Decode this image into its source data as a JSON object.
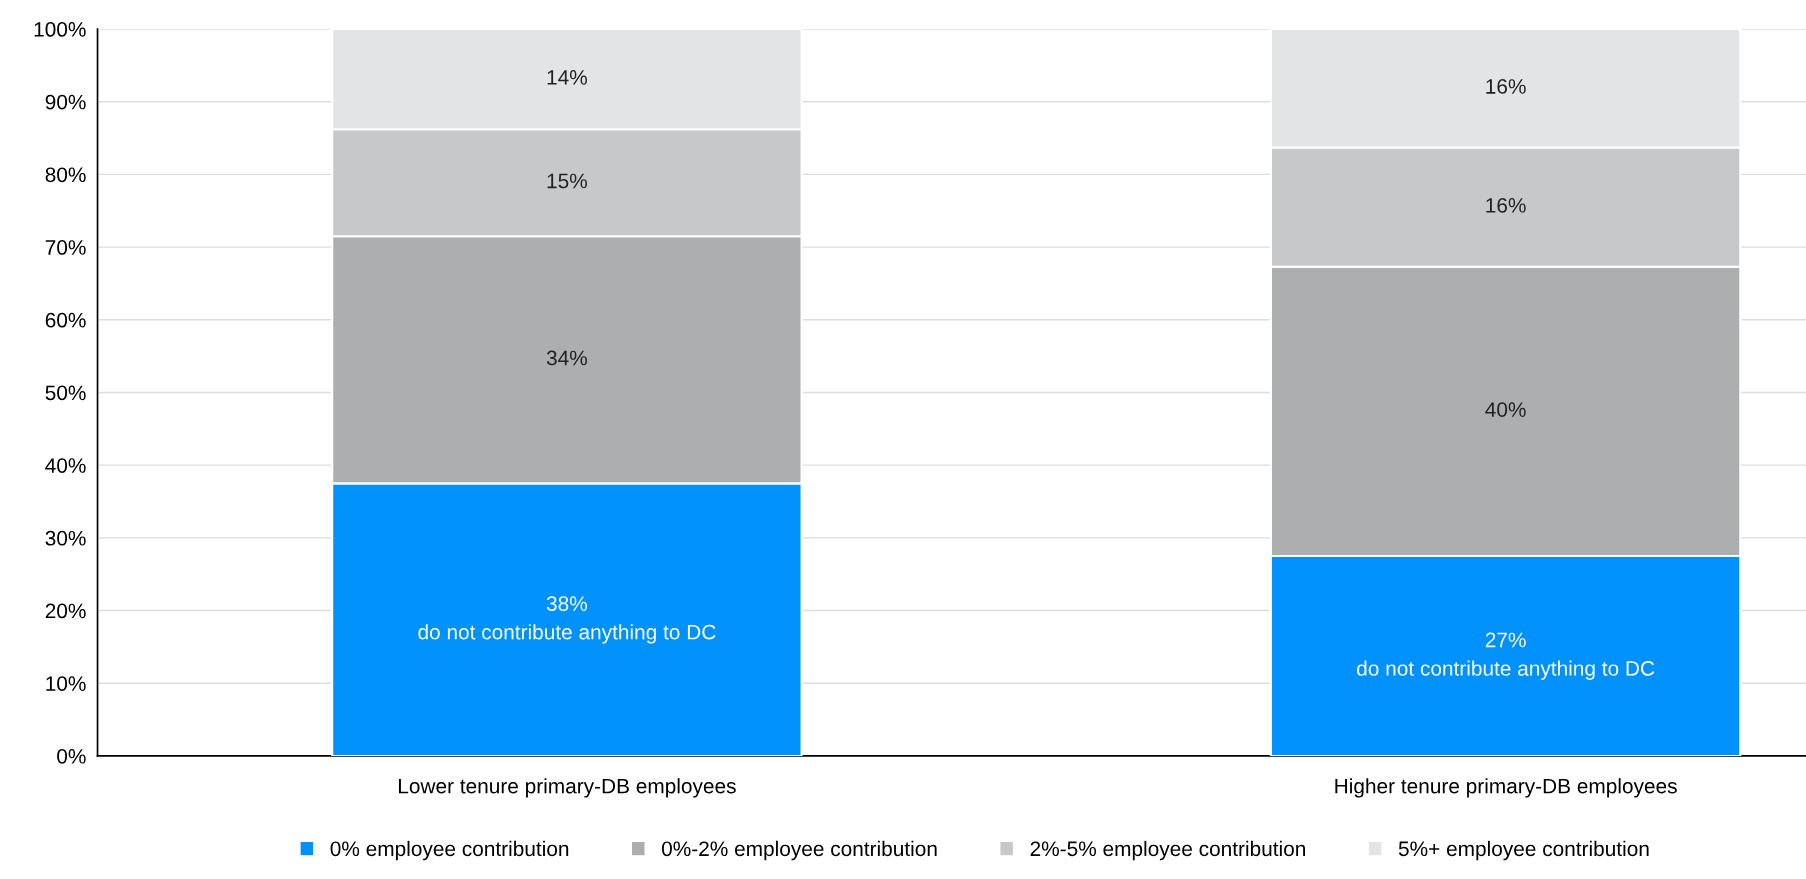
{
  "chart_data": {
    "type": "bar",
    "stacked": true,
    "categories": [
      "Lower tenure primary-DB employees",
      "Higher tenure primary-DB employees"
    ],
    "series": [
      {
        "name": "0% employee contribution",
        "color": "#0091fa",
        "values": [
          37.5,
          27.5
        ],
        "value_labels": [
          "38%\ndo not contribute anything to DC",
          "27%\ndo not contribute anything to DC"
        ]
      },
      {
        "name": "0%-2% employee contribution",
        "color": "#adaeb0",
        "values": [
          34,
          39.8
        ],
        "value_labels": [
          "34%",
          "40%"
        ]
      },
      {
        "name": "2%-5% employee contribution",
        "color": "#c7c8ca",
        "values": [
          14.7,
          16.4
        ],
        "value_labels": [
          "15%",
          "16%"
        ]
      },
      {
        "name": "5%+ employee contribution",
        "color": "#e3e4e6",
        "values": [
          13.8,
          16.3
        ],
        "value_labels": [
          "14%",
          "16%"
        ]
      }
    ],
    "ylim": [
      0,
      100
    ],
    "yticks": [
      {
        "value": 0,
        "label": "0%"
      },
      {
        "value": 10,
        "label": "10%"
      },
      {
        "value": 20,
        "label": "20%"
      },
      {
        "value": 30,
        "label": "30%"
      },
      {
        "value": 40,
        "label": "40%"
      },
      {
        "value": 50,
        "label": "50%"
      },
      {
        "value": 60,
        "label": "60%"
      },
      {
        "value": 70,
        "label": "70%"
      },
      {
        "value": 80,
        "label": "80%"
      },
      {
        "value": 90,
        "label": "90%"
      },
      {
        "value": 100,
        "label": "100%"
      }
    ],
    "grid": "y",
    "legend": "bottom"
  }
}
